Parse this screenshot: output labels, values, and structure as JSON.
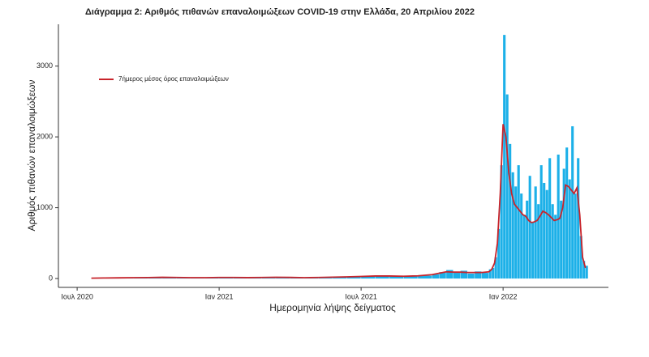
{
  "chart_data": {
    "type": "bar",
    "title": "Διάγραμμα 2: Αριθμός πιθανών επαναλοιμώξεων COVID-19 στην Ελλάδα, 20 Απριλίου 2022",
    "x_label": "Ημερομηνία λήψης δείγματος",
    "y_label": "Αριθμός πιθανών επαναλοιμώξεων",
    "x": [
      2020.55,
      2020.6,
      2020.65,
      2020.7,
      2020.75,
      2020.8,
      2020.85,
      2020.9,
      2020.95,
      2021.0,
      2021.05,
      2021.1,
      2021.15,
      2021.2,
      2021.25,
      2021.3,
      2021.35,
      2021.4,
      2021.45,
      2021.5,
      2021.55,
      2021.6,
      2021.65,
      2021.7,
      2021.75,
      2021.775,
      2021.8,
      2021.825,
      2021.85,
      2021.875,
      2021.9,
      2021.925,
      2021.95,
      2021.96,
      2021.97,
      2021.98,
      2021.99,
      2022.0,
      2022.01,
      2022.02,
      2022.03,
      2022.04,
      2022.05,
      2022.06,
      2022.07,
      2022.08,
      2022.09,
      2022.1,
      2022.11,
      2022.12,
      2022.13,
      2022.14,
      2022.15,
      2022.16,
      2022.17,
      2022.18,
      2022.19,
      2022.2,
      2022.21,
      2022.22,
      2022.23,
      2022.24,
      2022.25,
      2022.26,
      2022.27,
      2022.28,
      2022.29
    ],
    "series": [
      {
        "type": "bar",
        "color": "#1cb0e8",
        "values": [
          5,
          8,
          10,
          12,
          15,
          20,
          15,
          10,
          12,
          18,
          15,
          12,
          15,
          20,
          15,
          10,
          15,
          20,
          25,
          30,
          40,
          35,
          30,
          40,
          60,
          90,
          120,
          80,
          110,
          70,
          100,
          80,
          130,
          150,
          300,
          700,
          1600,
          3440,
          2600,
          1900,
          1500,
          1300,
          1600,
          1200,
          900,
          1100,
          1450,
          800,
          1300,
          1050,
          1600,
          1350,
          1250,
          1700,
          1050,
          900,
          1750,
          1100,
          1550,
          1850,
          1400,
          2150,
          1200,
          1700,
          600,
          250,
          180
        ]
      },
      {
        "type": "line",
        "name": "7ήμερος μέσος όρος επαναλοιμώξεων",
        "color": "#c8242b",
        "values": [
          5,
          8,
          10,
          12,
          14,
          17,
          15,
          12,
          12,
          15,
          15,
          13,
          15,
          18,
          16,
          12,
          15,
          19,
          24,
          29,
          36,
          36,
          32,
          38,
          55,
          75,
          95,
          90,
          90,
          85,
          85,
          85,
          95,
          130,
          220,
          500,
          1200,
          2180,
          2000,
          1500,
          1200,
          1050,
          1000,
          950,
          900,
          880,
          820,
          790,
          800,
          820,
          880,
          950,
          930,
          900,
          860,
          820,
          830,
          850,
          1000,
          1320,
          1300,
          1250,
          1200,
          1280,
          900,
          300,
          150
        ]
      }
    ],
    "xlim": [
      2020.434,
      2022.371
    ],
    "xticks": [
      {
        "value": 2020.5,
        "label": "Ιουλ 2020"
      },
      {
        "value": 2021,
        "label": "Ιαν 2021"
      },
      {
        "value": 2021.5,
        "label": "Ιουλ 2021"
      },
      {
        "value": 2022,
        "label": "Ιαν 2022"
      }
    ],
    "ylim": [
      -125,
      3590
    ],
    "yticks": [
      0,
      1000,
      2000,
      3000
    ],
    "legend": "top-left"
  }
}
